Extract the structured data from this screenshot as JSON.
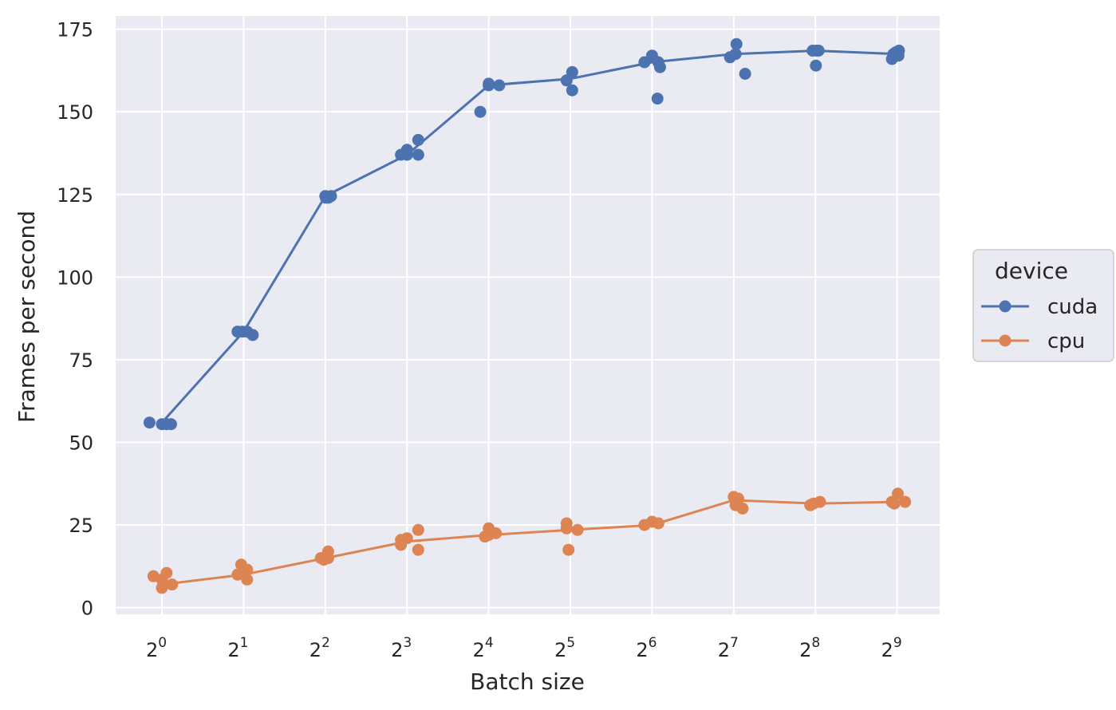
{
  "chart_data": {
    "type": "line",
    "xlabel": "Batch size",
    "ylabel": "Frames per second",
    "x_scale": "log2",
    "x_ticks": [
      {
        "value": 1,
        "base": "2",
        "exp": "0"
      },
      {
        "value": 2,
        "base": "2",
        "exp": "1"
      },
      {
        "value": 4,
        "base": "2",
        "exp": "2"
      },
      {
        "value": 8,
        "base": "2",
        "exp": "3"
      },
      {
        "value": 16,
        "base": "2",
        "exp": "4"
      },
      {
        "value": 32,
        "base": "2",
        "exp": "5"
      },
      {
        "value": 64,
        "base": "2",
        "exp": "6"
      },
      {
        "value": 128,
        "base": "2",
        "exp": "7"
      },
      {
        "value": 256,
        "base": "2",
        "exp": "8"
      },
      {
        "value": 512,
        "base": "2",
        "exp": "9"
      }
    ],
    "y_ticks": [
      "0",
      "25",
      "50",
      "75",
      "100",
      "125",
      "150",
      "175"
    ],
    "ylim": [
      -2,
      179
    ],
    "grid": true,
    "legend": {
      "title": "device",
      "position": "right"
    },
    "series": [
      {
        "name": "cuda",
        "color": "#4c72b0",
        "line": [
          {
            "x": 1,
            "y": 56
          },
          {
            "x": 2,
            "y": 83.5
          },
          {
            "x": 4,
            "y": 124.5
          },
          {
            "x": 8,
            "y": 137
          },
          {
            "x": 16,
            "y": 158
          },
          {
            "x": 32,
            "y": 160
          },
          {
            "x": 64,
            "y": 165
          },
          {
            "x": 128,
            "y": 167.5
          },
          {
            "x": 256,
            "y": 168.5
          },
          {
            "x": 512,
            "y": 167.5
          }
        ],
        "points": [
          {
            "x": 0.9,
            "y": 56
          },
          {
            "x": 1.0,
            "y": 55.5
          },
          {
            "x": 1.04,
            "y": 55.5
          },
          {
            "x": 1.08,
            "y": 55.5
          },
          {
            "x": 1.9,
            "y": 83.5
          },
          {
            "x": 1.98,
            "y": 83.5
          },
          {
            "x": 2.06,
            "y": 83.5
          },
          {
            "x": 2.16,
            "y": 82.5
          },
          {
            "x": 4.0,
            "y": 124.5
          },
          {
            "x": 4.02,
            "y": 124
          },
          {
            "x": 4.1,
            "y": 124
          },
          {
            "x": 4.2,
            "y": 124.5
          },
          {
            "x": 7.6,
            "y": 137
          },
          {
            "x": 8.0,
            "y": 137
          },
          {
            "x": 8.0,
            "y": 138.5
          },
          {
            "x": 8.8,
            "y": 137
          },
          {
            "x": 8.8,
            "y": 141.5
          },
          {
            "x": 14.9,
            "y": 150
          },
          {
            "x": 16.0,
            "y": 158
          },
          {
            "x": 16.0,
            "y": 158.5
          },
          {
            "x": 17.5,
            "y": 158
          },
          {
            "x": 31.0,
            "y": 159.5
          },
          {
            "x": 32.5,
            "y": 162
          },
          {
            "x": 32.5,
            "y": 156.5
          },
          {
            "x": 60.0,
            "y": 165
          },
          {
            "x": 64.0,
            "y": 167
          },
          {
            "x": 67.5,
            "y": 165
          },
          {
            "x": 68.5,
            "y": 163.5
          },
          {
            "x": 67.0,
            "y": 154
          },
          {
            "x": 124.0,
            "y": 166.5
          },
          {
            "x": 130.0,
            "y": 167.5
          },
          {
            "x": 131.0,
            "y": 170.5
          },
          {
            "x": 141.0,
            "y": 161.5
          },
          {
            "x": 250.0,
            "y": 168.5
          },
          {
            "x": 258.0,
            "y": 168.5
          },
          {
            "x": 263.0,
            "y": 168.5
          },
          {
            "x": 257.0,
            "y": 164
          },
          {
            "x": 490.0,
            "y": 166
          },
          {
            "x": 496.0,
            "y": 167.5
          },
          {
            "x": 506.0,
            "y": 168
          },
          {
            "x": 518.0,
            "y": 167
          },
          {
            "x": 520.0,
            "y": 168.5
          }
        ]
      },
      {
        "name": "cpu",
        "color": "#dd8452",
        "line": [
          {
            "x": 1,
            "y": 7
          },
          {
            "x": 2,
            "y": 10
          },
          {
            "x": 4,
            "y": 15
          },
          {
            "x": 8,
            "y": 20
          },
          {
            "x": 16,
            "y": 22
          },
          {
            "x": 32,
            "y": 23.5
          },
          {
            "x": 64,
            "y": 25
          },
          {
            "x": 128,
            "y": 32.5
          },
          {
            "x": 256,
            "y": 31.5
          },
          {
            "x": 512,
            "y": 32
          }
        ],
        "points": [
          {
            "x": 0.93,
            "y": 9.5
          },
          {
            "x": 1.0,
            "y": 6
          },
          {
            "x": 1.04,
            "y": 10.5
          },
          {
            "x": 1.09,
            "y": 7
          },
          {
            "x": 1.0,
            "y": 8.5
          },
          {
            "x": 1.9,
            "y": 10
          },
          {
            "x": 1.96,
            "y": 13
          },
          {
            "x": 2.06,
            "y": 11.5
          },
          {
            "x": 2.06,
            "y": 8.5
          },
          {
            "x": 3.85,
            "y": 15
          },
          {
            "x": 3.95,
            "y": 14.5
          },
          {
            "x": 4.1,
            "y": 17
          },
          {
            "x": 4.1,
            "y": 15
          },
          {
            "x": 7.6,
            "y": 20.5
          },
          {
            "x": 7.6,
            "y": 19
          },
          {
            "x": 8.0,
            "y": 21
          },
          {
            "x": 8.8,
            "y": 23.5
          },
          {
            "x": 8.8,
            "y": 17.5
          },
          {
            "x": 16.0,
            "y": 24
          },
          {
            "x": 16.0,
            "y": 22
          },
          {
            "x": 15.5,
            "y": 21.5
          },
          {
            "x": 17.0,
            "y": 22.5
          },
          {
            "x": 31.0,
            "y": 25.5
          },
          {
            "x": 31.0,
            "y": 24
          },
          {
            "x": 34.0,
            "y": 23.5
          },
          {
            "x": 31.5,
            "y": 17.5
          },
          {
            "x": 60.0,
            "y": 25
          },
          {
            "x": 64.0,
            "y": 26
          },
          {
            "x": 67.5,
            "y": 25.5
          },
          {
            "x": 128.0,
            "y": 33.5
          },
          {
            "x": 133.0,
            "y": 33
          },
          {
            "x": 130.0,
            "y": 31
          },
          {
            "x": 138.0,
            "y": 30
          },
          {
            "x": 245.0,
            "y": 31
          },
          {
            "x": 252.0,
            "y": 31.5
          },
          {
            "x": 266.0,
            "y": 32
          },
          {
            "x": 490.0,
            "y": 32
          },
          {
            "x": 500.0,
            "y": 31.5
          },
          {
            "x": 515.0,
            "y": 34.5
          },
          {
            "x": 548.0,
            "y": 32
          }
        ]
      }
    ]
  }
}
